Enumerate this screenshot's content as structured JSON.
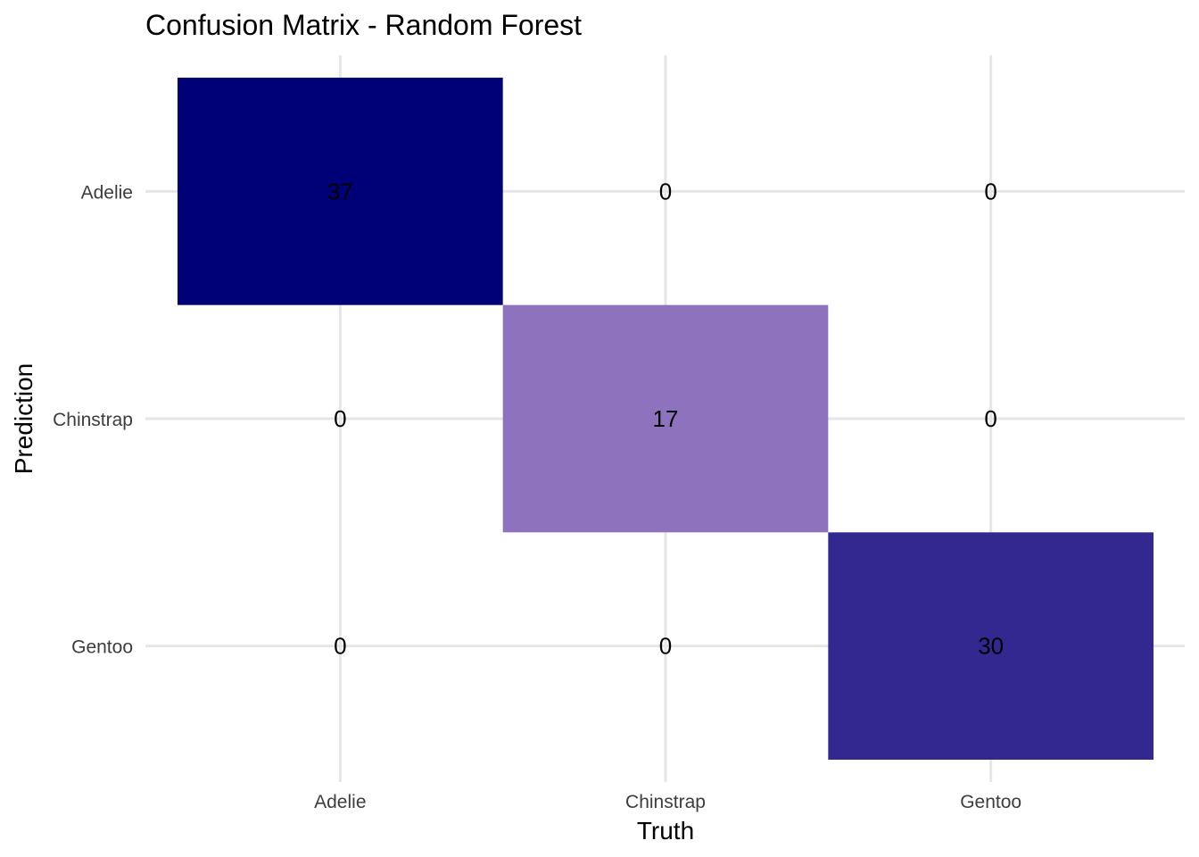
{
  "chart_data": {
    "type": "heatmap",
    "title": "Confusion Matrix - Random Forest",
    "xlabel": "Truth",
    "ylabel": "Prediction",
    "x_categories": [
      "Adelie",
      "Chinstrap",
      "Gentoo"
    ],
    "y_categories": [
      "Adelie",
      "Chinstrap",
      "Gentoo"
    ],
    "values": [
      [
        37,
        0,
        0
      ],
      [
        0,
        17,
        0
      ],
      [
        0,
        0,
        30
      ]
    ],
    "color_low": "#ffffff",
    "color_high": "#000077",
    "color_mid": "#8f72be",
    "grid": true,
    "legend": "none"
  }
}
